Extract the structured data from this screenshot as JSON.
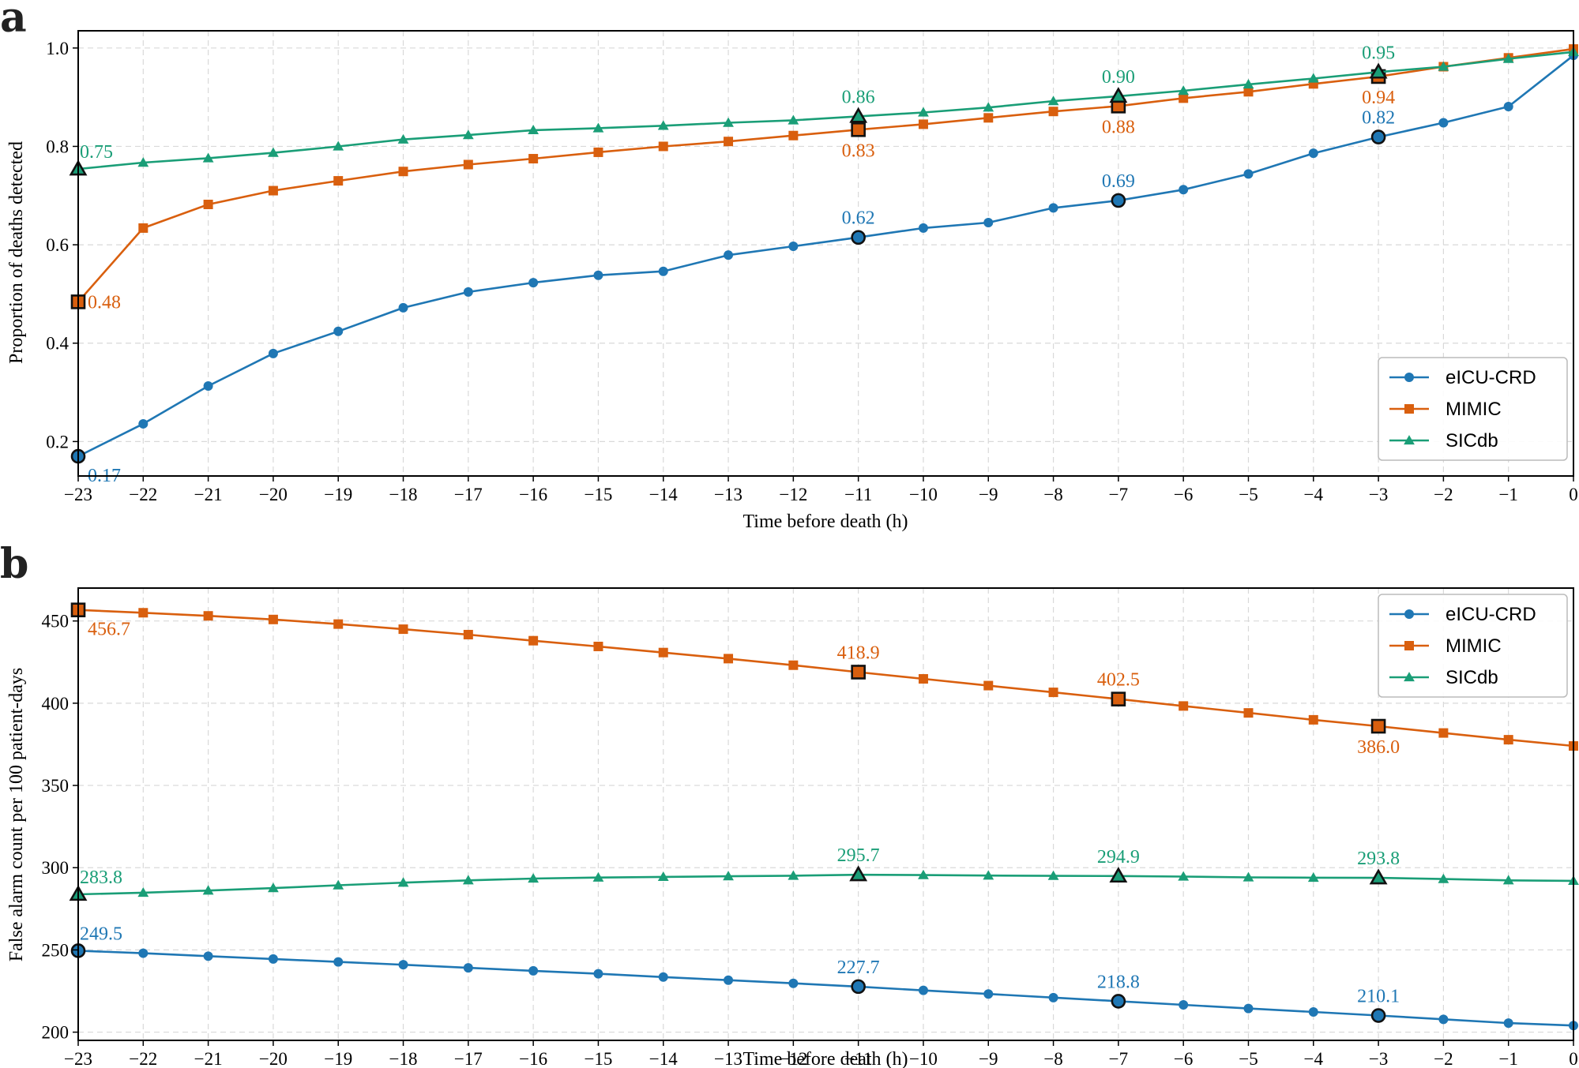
{
  "chart_data": [
    {
      "panel": "a",
      "type": "line",
      "xlabel": "Time before death (h)",
      "ylabel": "Proportion of deaths detected",
      "x": [
        -23,
        -22,
        -21,
        -20,
        -19,
        -18,
        -17,
        -16,
        -15,
        -14,
        -13,
        -12,
        -11,
        -10,
        -9,
        -8,
        -7,
        -6,
        -5,
        -4,
        -3,
        -2,
        -1,
        0
      ],
      "xlim": [
        -23,
        0
      ],
      "ylim": [
        0.13,
        1.035
      ],
      "xticks": [
        -23,
        -22,
        -21,
        -20,
        -19,
        -18,
        -17,
        -16,
        -15,
        -14,
        -13,
        -12,
        -11,
        -10,
        -9,
        -8,
        -7,
        -6,
        -5,
        -4,
        -3,
        -2,
        -1,
        0
      ],
      "xtick_labels": [
        "−23",
        "−22",
        "−21",
        "−20",
        "−19",
        "−18",
        "−17",
        "−16",
        "−15",
        "−14",
        "−13",
        "−12",
        "−11",
        "−10",
        "−9",
        "−8",
        "−7",
        "−6",
        "−5",
        "−4",
        "−3",
        "−2",
        "−1",
        "0"
      ],
      "yticks": [
        0.2,
        0.4,
        0.6,
        0.8,
        1.0
      ],
      "ytick_labels": [
        "0.2",
        "0.4",
        "0.6",
        "0.8",
        "1.0"
      ],
      "grid": true,
      "legend_position": "bottom-right",
      "series": [
        {
          "name": "eICU-CRD",
          "color": "#1f77b4",
          "marker": "circle",
          "values": [
            0.17,
            0.236,
            0.313,
            0.379,
            0.424,
            0.472,
            0.504,
            0.523,
            0.538,
            0.546,
            0.579,
            0.597,
            0.615,
            0.634,
            0.645,
            0.675,
            0.69,
            0.712,
            0.744,
            0.786,
            0.819,
            0.848,
            0.881,
            0.985
          ],
          "highlights": [
            {
              "x": -23,
              "label": "0.17",
              "label_position": "below-right"
            },
            {
              "x": -11,
              "label": "0.62",
              "label_position": "above"
            },
            {
              "x": -7,
              "label": "0.69",
              "label_position": "above"
            },
            {
              "x": -3,
              "label": "0.82",
              "label_position": "above"
            }
          ]
        },
        {
          "name": "MIMIC",
          "color": "#d95f0e",
          "marker": "square",
          "values": [
            0.484,
            0.634,
            0.682,
            0.71,
            0.73,
            0.749,
            0.763,
            0.775,
            0.788,
            0.8,
            0.81,
            0.822,
            0.834,
            0.845,
            0.858,
            0.871,
            0.882,
            0.898,
            0.911,
            0.927,
            0.942,
            0.962,
            0.98,
            0.998
          ],
          "highlights": [
            {
              "x": -23,
              "label": "0.48",
              "label_position": "right"
            },
            {
              "x": -11,
              "label": "0.83",
              "label_position": "below"
            },
            {
              "x": -7,
              "label": "0.88",
              "label_position": "below"
            },
            {
              "x": -3,
              "label": "0.94",
              "label_position": "below"
            }
          ]
        },
        {
          "name": "SICdb",
          "color": "#1a9e77",
          "marker": "triangle",
          "values": [
            0.754,
            0.767,
            0.776,
            0.787,
            0.8,
            0.814,
            0.823,
            0.833,
            0.837,
            0.842,
            0.848,
            0.853,
            0.861,
            0.869,
            0.879,
            0.892,
            0.902,
            0.913,
            0.926,
            0.938,
            0.951,
            0.962,
            0.978,
            0.992
          ],
          "highlights": [
            {
              "x": -23,
              "label": "0.75",
              "label_position": "above-right"
            },
            {
              "x": -11,
              "label": "0.86",
              "label_position": "above"
            },
            {
              "x": -7,
              "label": "0.90",
              "label_position": "above"
            },
            {
              "x": -3,
              "label": "0.95",
              "label_position": "above"
            }
          ]
        }
      ]
    },
    {
      "panel": "b",
      "type": "line",
      "xlabel": "Time before death (h)",
      "ylabel": "False alarm count per 100 patient-days",
      "x": [
        -23,
        -22,
        -21,
        -20,
        -19,
        -18,
        -17,
        -16,
        -15,
        -14,
        -13,
        -12,
        -11,
        -10,
        -9,
        -8,
        -7,
        -6,
        -5,
        -4,
        -3,
        -2,
        -1,
        0
      ],
      "xlim": [
        -23,
        0
      ],
      "ylim": [
        195,
        470
      ],
      "xticks": [
        -23,
        -22,
        -21,
        -20,
        -19,
        -18,
        -17,
        -16,
        -15,
        -14,
        -13,
        -12,
        -11,
        -10,
        -9,
        -8,
        -7,
        -6,
        -5,
        -4,
        -3,
        -2,
        -1,
        0
      ],
      "xtick_labels": [
        "−23",
        "−22",
        "−21",
        "−20",
        "−19",
        "−18",
        "−17",
        "−16",
        "−15",
        "−14",
        "−13",
        "−12",
        "−11",
        "−10",
        "−9",
        "−8",
        "−7",
        "−6",
        "−5",
        "−4",
        "−3",
        "−2",
        "−1",
        "0"
      ],
      "yticks": [
        200,
        250,
        300,
        350,
        400,
        450
      ],
      "ytick_labels": [
        "200",
        "250",
        "300",
        "350",
        "400",
        "450"
      ],
      "grid": true,
      "legend_position": "top-right",
      "series": [
        {
          "name": "eICU-CRD",
          "color": "#1f77b4",
          "marker": "circle",
          "values": [
            249.5,
            248.0,
            246.2,
            244.5,
            242.7,
            241.0,
            239.1,
            237.3,
            235.5,
            233.5,
            231.6,
            229.7,
            227.7,
            225.4,
            223.2,
            221.0,
            218.8,
            216.6,
            214.4,
            212.3,
            210.1,
            207.8,
            205.5,
            204.0
          ],
          "highlights": [
            {
              "x": -23,
              "label": "249.5",
              "label_position": "above-right"
            },
            {
              "x": -11,
              "label": "227.7",
              "label_position": "above"
            },
            {
              "x": -7,
              "label": "218.8",
              "label_position": "above"
            },
            {
              "x": -3,
              "label": "210.1",
              "label_position": "above"
            }
          ]
        },
        {
          "name": "MIMIC",
          "color": "#d95f0e",
          "marker": "square",
          "values": [
            456.7,
            455.0,
            453.1,
            450.9,
            448.1,
            445.0,
            441.7,
            438.0,
            434.5,
            430.8,
            427.1,
            423.1,
            418.9,
            414.8,
            410.7,
            406.6,
            402.5,
            398.3,
            394.1,
            389.9,
            386.0,
            381.9,
            377.8,
            374.0
          ],
          "highlights": [
            {
              "x": -23,
              "label": "456.7",
              "label_position": "below-right"
            },
            {
              "x": -11,
              "label": "418.9",
              "label_position": "above"
            },
            {
              "x": -7,
              "label": "402.5",
              "label_position": "above"
            },
            {
              "x": -3,
              "label": "386.0",
              "label_position": "below"
            }
          ]
        },
        {
          "name": "SICdb",
          "color": "#1a9e77",
          "marker": "triangle",
          "values": [
            283.8,
            284.8,
            286.1,
            287.6,
            289.3,
            290.9,
            292.3,
            293.4,
            294.0,
            294.4,
            294.8,
            295.1,
            295.7,
            295.5,
            295.2,
            295.0,
            294.9,
            294.6,
            294.1,
            293.9,
            293.8,
            293.1,
            292.3,
            292.0
          ],
          "highlights": [
            {
              "x": -23,
              "label": "283.8",
              "label_position": "above-right"
            },
            {
              "x": -11,
              "label": "295.7",
              "label_position": "above"
            },
            {
              "x": -7,
              "label": "294.9",
              "label_position": "above"
            },
            {
              "x": -3,
              "label": "293.8",
              "label_position": "above"
            }
          ]
        }
      ]
    }
  ]
}
